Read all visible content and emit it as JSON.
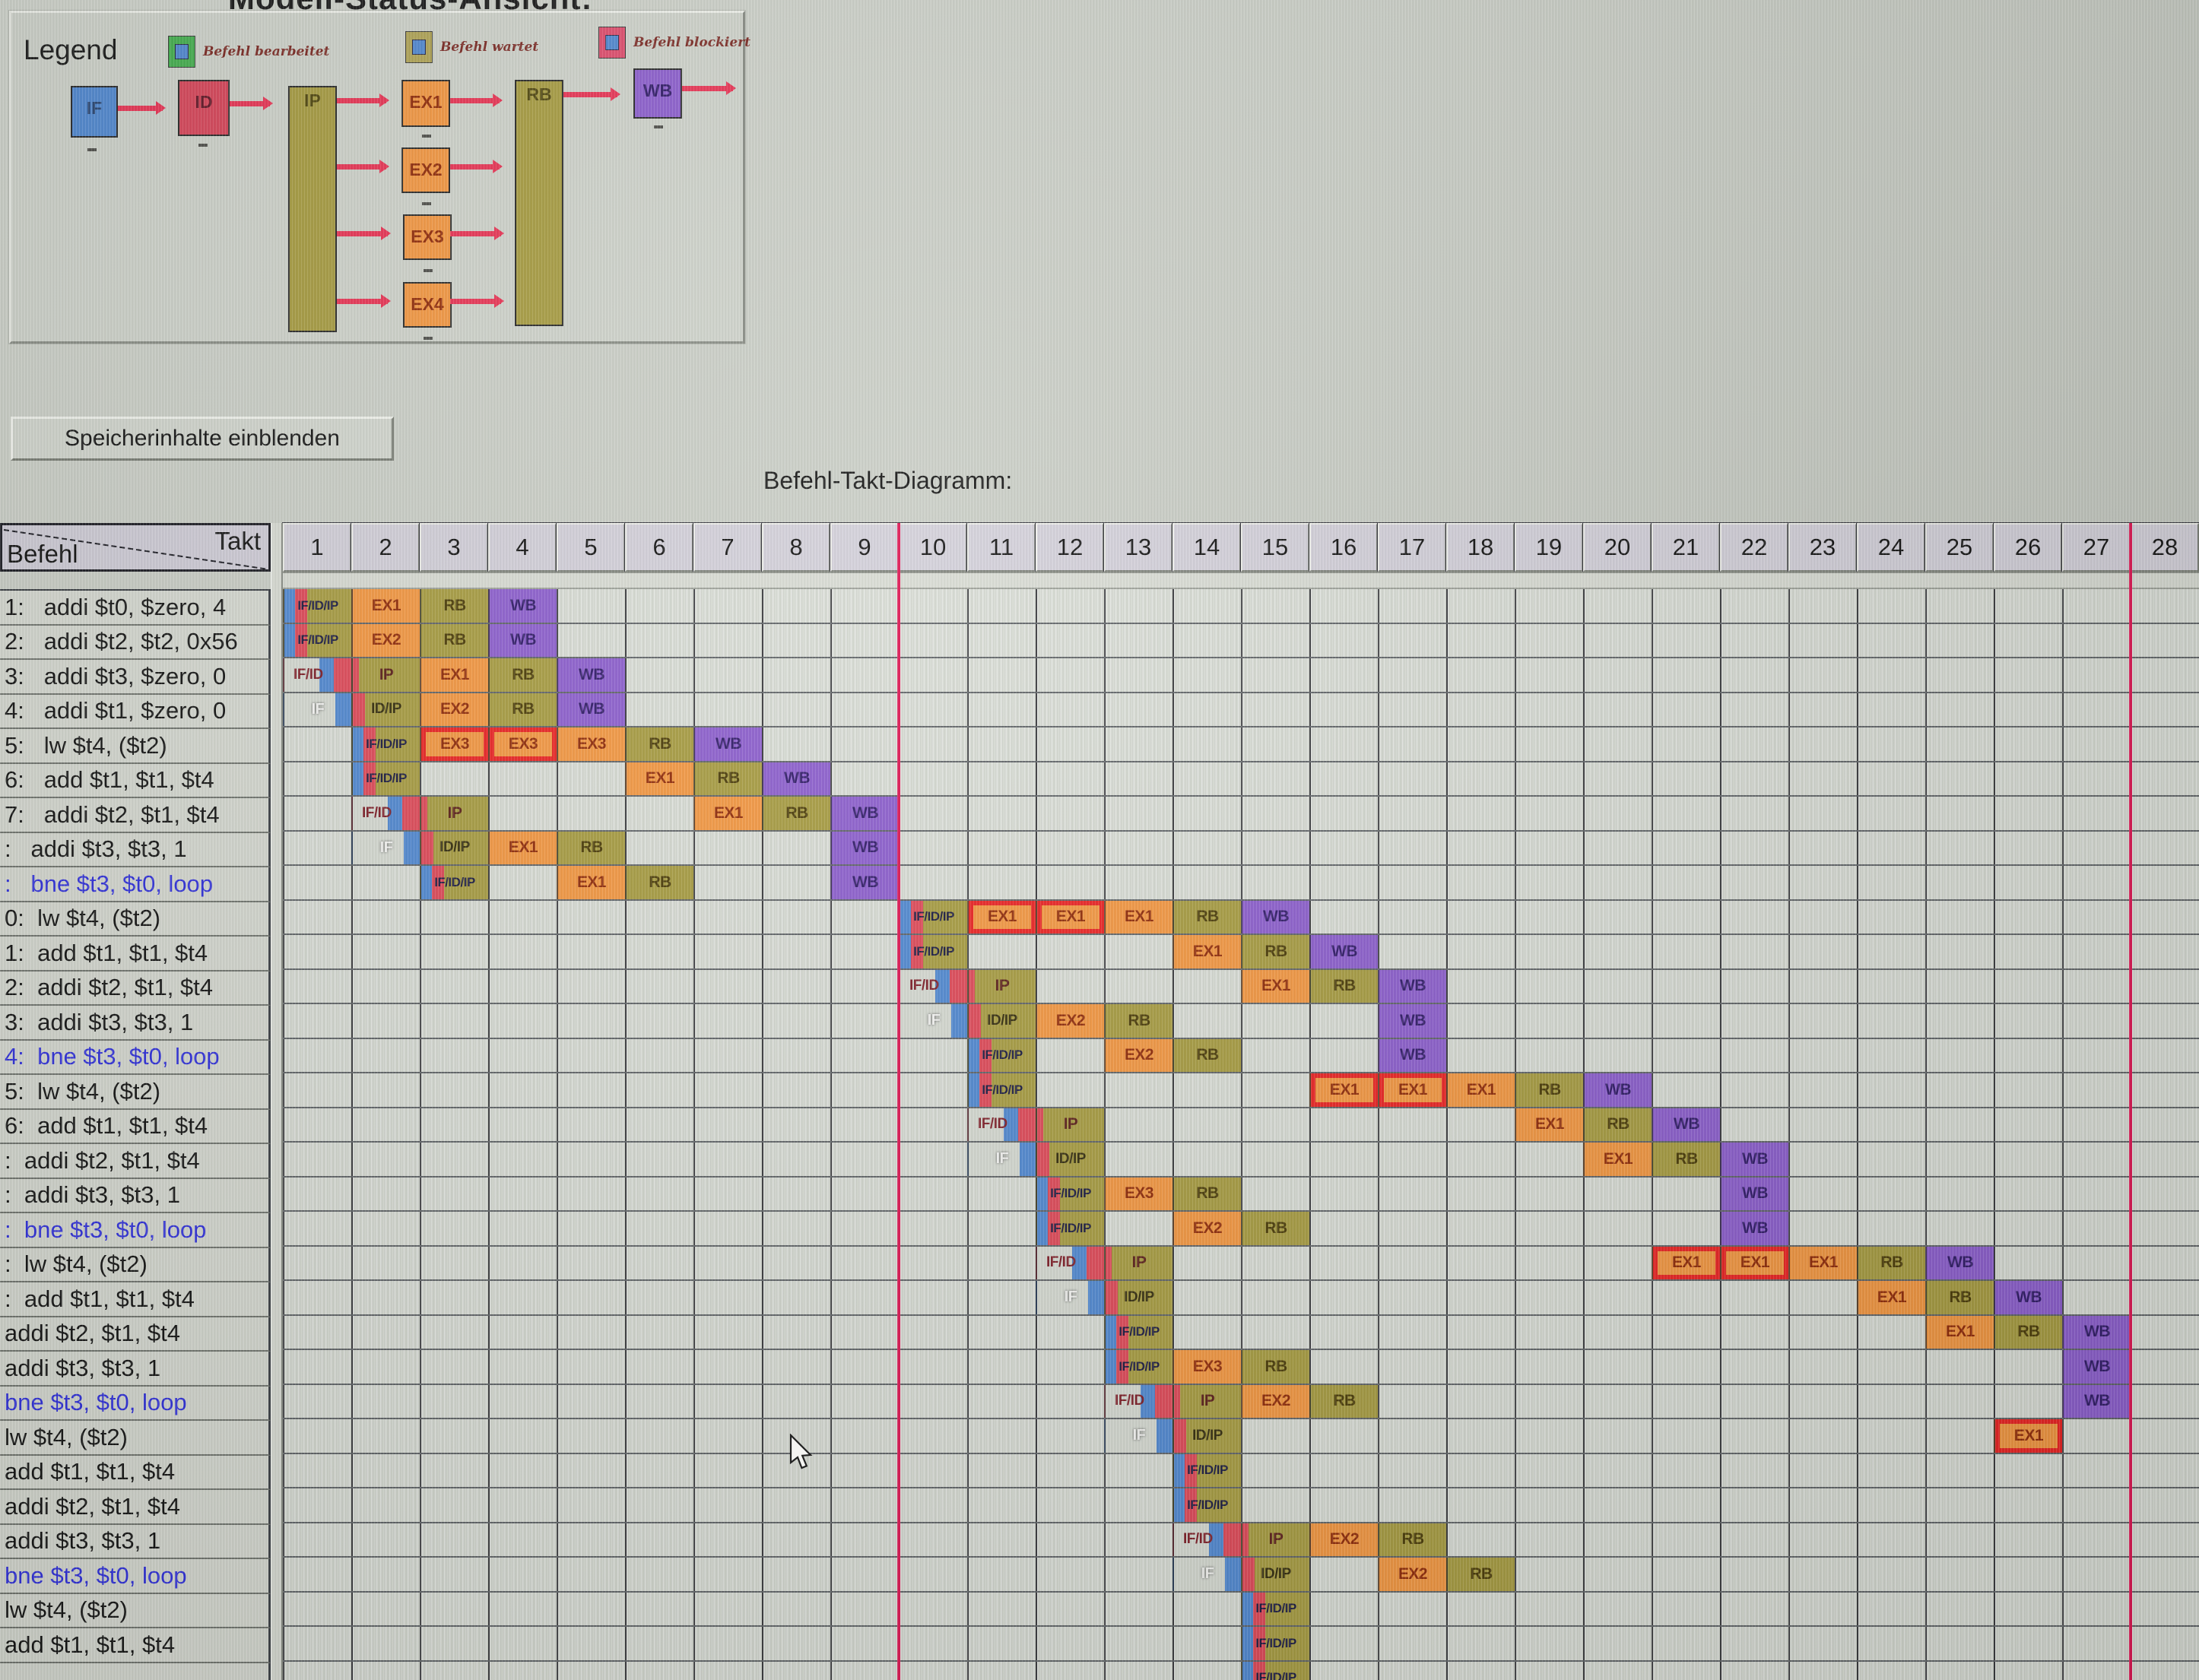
{
  "window": {
    "title": "Modell-Status-Ansicht:"
  },
  "legend": {
    "title": "Legend",
    "items": [
      {
        "name": "befehl-bearbeitet",
        "label": "Befehl bearbeitet",
        "outer": "#3fae4a",
        "inner": "#4c86d2"
      },
      {
        "name": "befehl-wartet",
        "label": "Befehl wartet",
        "outer": "#b0a352",
        "inner": "#4c86d2"
      },
      {
        "name": "befehl-blockiert",
        "label": "Befehl blockiert",
        "outer": "#e0486a",
        "inner": "#4c86d2"
      }
    ],
    "pipeline": {
      "stages": [
        "IF",
        "ID",
        "IP",
        "EX1",
        "EX2",
        "EX3",
        "EX4",
        "RB",
        "WB"
      ]
    }
  },
  "toolbar": {
    "memory_button": "Speicherinhalte einblenden"
  },
  "diagram": {
    "title": "Befehl-Takt-Diagramm:",
    "corner": {
      "top_label": "Takt",
      "bottom_label": "Befehl"
    },
    "columns": [
      1,
      2,
      3,
      4,
      5,
      6,
      7,
      8,
      9,
      10,
      11,
      12,
      13,
      14,
      15,
      16,
      17,
      18,
      19,
      20,
      21,
      22,
      23,
      24,
      25,
      26,
      27,
      28
    ],
    "red_marker_after_columns": [
      9,
      27
    ],
    "stage_colors": {
      "IF": "#4c86d2",
      "ID": "#e04454",
      "IP": "#a69a3c",
      "EX": "#f5953c",
      "RB": "#a69a3c",
      "WB": "#8a5ace",
      "blocked_border": "#ec1c1c",
      "red_line": "#e01050"
    },
    "rows": [
      {
        "label": "1:   addi $t0, $zero, 4",
        "blue": false,
        "cells": [
          [
            1,
            "ifidip",
            "IF/ID/IP"
          ],
          [
            2,
            "ex",
            "EX1"
          ],
          [
            3,
            "rb",
            "RB"
          ],
          [
            4,
            "wb",
            "WB"
          ]
        ]
      },
      {
        "label": "2:   addi $t2, $t2, 0x56",
        "blue": false,
        "cells": [
          [
            1,
            "ifidip",
            "IF/ID/IP"
          ],
          [
            2,
            "ex",
            "EX2"
          ],
          [
            3,
            "rb",
            "RB"
          ],
          [
            4,
            "wb",
            "WB"
          ]
        ]
      },
      {
        "label": "3:   addi $t3, $zero, 0",
        "blue": false,
        "cells": [
          [
            1,
            "ifid",
            "IF/ID"
          ],
          [
            2,
            "ip",
            "IP"
          ],
          [
            3,
            "ex",
            "EX1"
          ],
          [
            4,
            "rb",
            "RB"
          ],
          [
            5,
            "wb",
            "WB"
          ]
        ]
      },
      {
        "label": "4:   addi $t1, $zero, 0",
        "blue": false,
        "cells": [
          [
            1,
            "if",
            "IF"
          ],
          [
            2,
            "idip",
            "ID/IP"
          ],
          [
            3,
            "ex",
            "EX2"
          ],
          [
            4,
            "rb",
            "RB"
          ],
          [
            5,
            "wb",
            "WB"
          ]
        ]
      },
      {
        "label": "5:   lw $t4, ($t2)",
        "blue": false,
        "cells": [
          [
            2,
            "ifidip",
            "IF/ID/IP"
          ],
          [
            3,
            "exb",
            "EX3"
          ],
          [
            4,
            "exb",
            "EX3"
          ],
          [
            5,
            "ex",
            "EX3"
          ],
          [
            6,
            "rb",
            "RB"
          ],
          [
            7,
            "wb",
            "WB"
          ]
        ]
      },
      {
        "label": "6:   add $t1, $t1, $t4",
        "blue": false,
        "cells": [
          [
            2,
            "ifidip",
            "IF/ID/IP"
          ],
          [
            6,
            "ex",
            "EX1"
          ],
          [
            7,
            "rb",
            "RB"
          ],
          [
            8,
            "wb",
            "WB"
          ]
        ]
      },
      {
        "label": "7:   addi $t2, $t1, $t4",
        "blue": false,
        "cells": [
          [
            2,
            "ifid",
            "IF/ID"
          ],
          [
            3,
            "ip",
            "IP"
          ],
          [
            7,
            "ex",
            "EX1"
          ],
          [
            8,
            "rb",
            "RB"
          ],
          [
            9,
            "wb",
            "WB"
          ]
        ]
      },
      {
        "label": ":   addi $t3, $t3, 1",
        "blue": false,
        "cells": [
          [
            2,
            "if",
            "IF"
          ],
          [
            3,
            "idip",
            "ID/IP"
          ],
          [
            4,
            "ex",
            "EX1"
          ],
          [
            5,
            "rb",
            "RB"
          ],
          [
            9,
            "wb",
            "WB"
          ]
        ]
      },
      {
        "label": ":   bne $t3, $t0, loop",
        "blue": true,
        "cells": [
          [
            3,
            "ifidip",
            "IF/ID/IP"
          ],
          [
            5,
            "ex",
            "EX1"
          ],
          [
            6,
            "rb",
            "RB"
          ],
          [
            9,
            "wb",
            "WB"
          ]
        ]
      },
      {
        "label": "0:  lw $t4, ($t2)",
        "blue": false,
        "cells": [
          [
            10,
            "ifidip",
            "IF/ID/IP"
          ],
          [
            11,
            "exb",
            "EX1"
          ],
          [
            12,
            "exb",
            "EX1"
          ],
          [
            13,
            "ex",
            "EX1"
          ],
          [
            14,
            "rb",
            "RB"
          ],
          [
            15,
            "wb",
            "WB"
          ]
        ]
      },
      {
        "label": "1:  add $t1, $t1, $t4",
        "blue": false,
        "cells": [
          [
            10,
            "ifidip",
            "IF/ID/IP"
          ],
          [
            14,
            "ex",
            "EX1"
          ],
          [
            15,
            "rb",
            "RB"
          ],
          [
            16,
            "wb",
            "WB"
          ]
        ]
      },
      {
        "label": "2:  addi $t2, $t1, $t4",
        "blue": false,
        "cells": [
          [
            10,
            "ifid",
            "IF/ID"
          ],
          [
            11,
            "ip",
            "IP"
          ],
          [
            15,
            "ex",
            "EX1"
          ],
          [
            16,
            "rb",
            "RB"
          ],
          [
            17,
            "wb",
            "WB"
          ]
        ]
      },
      {
        "label": "3:  addi $t3, $t3, 1",
        "blue": false,
        "cells": [
          [
            10,
            "if",
            "IF"
          ],
          [
            11,
            "idip",
            "ID/IP"
          ],
          [
            12,
            "ex",
            "EX2"
          ],
          [
            13,
            "rb",
            "RB"
          ],
          [
            17,
            "wb",
            "WB"
          ]
        ]
      },
      {
        "label": "4:  bne $t3, $t0, loop",
        "blue": true,
        "cells": [
          [
            11,
            "ifidip",
            "IF/ID/IP"
          ],
          [
            13,
            "ex",
            "EX2"
          ],
          [
            14,
            "rb",
            "RB"
          ],
          [
            17,
            "wb",
            "WB"
          ]
        ]
      },
      {
        "label": "5:  lw $t4, ($t2)",
        "blue": false,
        "cells": [
          [
            11,
            "ifidip",
            "IF/ID/IP"
          ],
          [
            16,
            "exb",
            "EX1"
          ],
          [
            17,
            "exb",
            "EX1"
          ],
          [
            18,
            "ex",
            "EX1"
          ],
          [
            19,
            "rb",
            "RB"
          ],
          [
            20,
            "wb",
            "WB"
          ]
        ]
      },
      {
        "label": "6:  add $t1, $t1, $t4",
        "blue": false,
        "cells": [
          [
            11,
            "ifid",
            "IF/ID"
          ],
          [
            12,
            "ip",
            "IP"
          ],
          [
            19,
            "ex",
            "EX1"
          ],
          [
            20,
            "rb",
            "RB"
          ],
          [
            21,
            "wb",
            "WB"
          ]
        ]
      },
      {
        "label": ":  addi $t2, $t1, $t4",
        "blue": false,
        "cells": [
          [
            11,
            "if",
            "IF"
          ],
          [
            12,
            "idip",
            "ID/IP"
          ],
          [
            20,
            "ex",
            "EX1"
          ],
          [
            21,
            "rb",
            "RB"
          ],
          [
            22,
            "wb",
            "WB"
          ]
        ]
      },
      {
        "label": ":  addi $t3, $t3, 1",
        "blue": false,
        "cells": [
          [
            12,
            "ifidip",
            "IF/ID/IP"
          ],
          [
            13,
            "ex",
            "EX3"
          ],
          [
            14,
            "rb",
            "RB"
          ],
          [
            22,
            "wb",
            "WB"
          ]
        ]
      },
      {
        "label": ":  bne $t3, $t0, loop",
        "blue": true,
        "cells": [
          [
            12,
            "ifidip",
            "IF/ID/IP"
          ],
          [
            14,
            "ex",
            "EX2"
          ],
          [
            15,
            "rb",
            "RB"
          ],
          [
            22,
            "wb",
            "WB"
          ]
        ]
      },
      {
        "label": ":  lw $t4, ($t2)",
        "blue": false,
        "cells": [
          [
            12,
            "ifid",
            "IF/ID"
          ],
          [
            13,
            "ip",
            "IP"
          ],
          [
            21,
            "exb",
            "EX1"
          ],
          [
            22,
            "exb",
            "EX1"
          ],
          [
            23,
            "ex",
            "EX1"
          ],
          [
            24,
            "rb",
            "RB"
          ],
          [
            25,
            "wb",
            "WB"
          ]
        ]
      },
      {
        "label": ":  add $t1, $t1, $t4",
        "blue": false,
        "cells": [
          [
            12,
            "if",
            "IF"
          ],
          [
            13,
            "idip",
            "ID/IP"
          ],
          [
            24,
            "ex",
            "EX1"
          ],
          [
            25,
            "rb",
            "RB"
          ],
          [
            26,
            "wb",
            "WB"
          ]
        ]
      },
      {
        "label": "addi $t2, $t1, $t4",
        "blue": false,
        "cells": [
          [
            13,
            "ifidip",
            "IF/ID/IP"
          ],
          [
            25,
            "ex",
            "EX1"
          ],
          [
            26,
            "rb",
            "RB"
          ],
          [
            27,
            "wb",
            "WB"
          ]
        ]
      },
      {
        "label": "addi $t3, $t3, 1",
        "blue": false,
        "cells": [
          [
            13,
            "ifidip",
            "IF/ID/IP"
          ],
          [
            14,
            "ex",
            "EX3"
          ],
          [
            15,
            "rb",
            "RB"
          ],
          [
            27,
            "wb",
            "WB"
          ]
        ]
      },
      {
        "label": "bne $t3, $t0, loop",
        "blue": true,
        "cells": [
          [
            13,
            "ifid",
            "IF/ID"
          ],
          [
            14,
            "ip",
            "IP"
          ],
          [
            15,
            "ex",
            "EX2"
          ],
          [
            16,
            "rb",
            "RB"
          ],
          [
            27,
            "wb",
            "WB"
          ]
        ]
      },
      {
        "label": "lw $t4, ($t2)",
        "blue": false,
        "cells": [
          [
            13,
            "if",
            "IF"
          ],
          [
            14,
            "idip",
            "ID/IP"
          ],
          [
            26,
            "exb",
            "EX1"
          ]
        ]
      },
      {
        "label": "add $t1, $t1, $t4",
        "blue": false,
        "cells": [
          [
            14,
            "ifidip",
            "IF/ID/IP"
          ]
        ]
      },
      {
        "label": "addi $t2, $t1, $t4",
        "blue": false,
        "cells": [
          [
            14,
            "ifidip",
            "IF/ID/IP"
          ]
        ]
      },
      {
        "label": "addi $t3, $t3, 1",
        "blue": false,
        "cells": [
          [
            14,
            "ifid",
            "IF/ID"
          ],
          [
            15,
            "ip",
            "IP"
          ],
          [
            16,
            "ex",
            "EX2"
          ],
          [
            17,
            "rb",
            "RB"
          ]
        ]
      },
      {
        "label": "bne $t3, $t0, loop",
        "blue": true,
        "cells": [
          [
            14,
            "if",
            "IF"
          ],
          [
            15,
            "idip",
            "ID/IP"
          ],
          [
            17,
            "ex",
            "EX2"
          ],
          [
            18,
            "rb",
            "RB"
          ]
        ]
      },
      {
        "label": "lw $t4, ($t2)",
        "blue": false,
        "cells": [
          [
            15,
            "ifidip",
            "IF/ID/IP"
          ]
        ]
      },
      {
        "label": "add $t1, $t1, $t4",
        "blue": false,
        "cells": [
          [
            15,
            "ifidip",
            "IF/ID/IP"
          ]
        ]
      },
      {
        "label": "",
        "blue": false,
        "cells": [
          [
            15,
            "ifidip",
            "IF/ID/IP"
          ]
        ]
      }
    ]
  }
}
